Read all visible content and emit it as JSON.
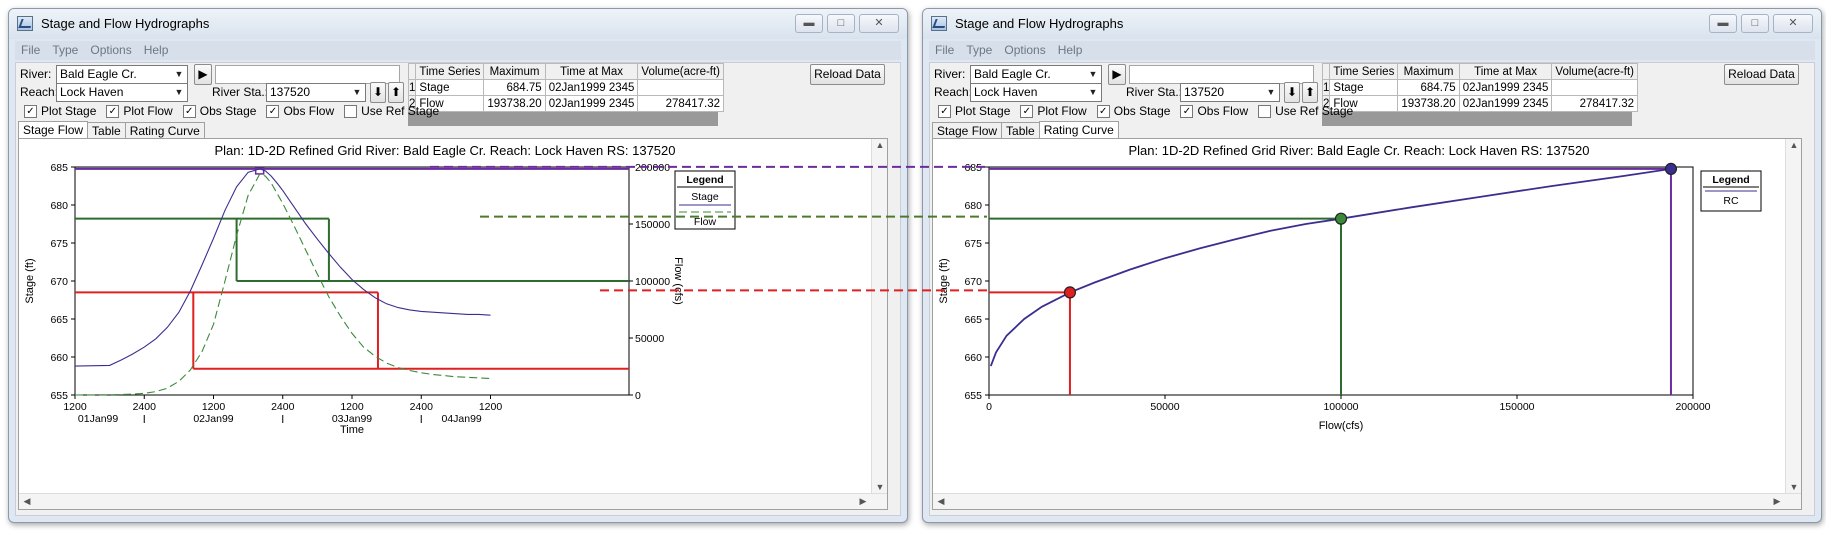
{
  "windows": [
    {
      "id": "left",
      "title": "Stage and Flow Hydrographs",
      "menu": [
        "File",
        "Type",
        "Options",
        "Help"
      ],
      "river_label": "River:",
      "river_value": "Bald Eagle Cr.",
      "reach_label": "Reach:",
      "reach_value": "Lock Haven",
      "station_label": "River Sta.:",
      "station_value": "137520",
      "reload_label": "Reload Data",
      "play_icon": "play-icon",
      "table": {
        "headers": [
          "Time Series",
          "Maximum",
          "Time at Max",
          "Volume(acre-ft)"
        ],
        "rows": [
          {
            "n": "1",
            "series": "Stage",
            "max": "684.75",
            "time": "02Jan1999  2345",
            "vol": ""
          },
          {
            "n": "2",
            "series": "Flow",
            "max": "193738.20",
            "time": "02Jan1999  2345",
            "vol": "278417.32"
          }
        ]
      },
      "checkboxes": [
        {
          "label": "Plot Stage",
          "checked": true
        },
        {
          "label": "Plot Flow",
          "checked": true
        },
        {
          "label": "Obs Stage",
          "checked": true
        },
        {
          "label": "Obs Flow",
          "checked": true
        },
        {
          "label": "Use Ref Stage",
          "checked": false
        }
      ],
      "tabs": [
        {
          "label": "Stage Flow",
          "active": true
        },
        {
          "label": "Table",
          "active": false
        },
        {
          "label": "Rating Curve",
          "active": false
        }
      ]
    },
    {
      "id": "right",
      "title": "Stage and Flow Hydrographs",
      "menu": [
        "File",
        "Type",
        "Options",
        "Help"
      ],
      "river_label": "River:",
      "river_value": "Bald Eagle Cr.",
      "reach_label": "Reach:",
      "reach_value": "Lock Haven",
      "station_label": "River Sta.:",
      "station_value": "137520",
      "reload_label": "Reload Data",
      "play_icon": "play-icon",
      "table": {
        "headers": [
          "Time Series",
          "Maximum",
          "Time at Max",
          "Volume(acre-ft)"
        ],
        "rows": [
          {
            "n": "1",
            "series": "Stage",
            "max": "684.75",
            "time": "02Jan1999  2345",
            "vol": ""
          },
          {
            "n": "2",
            "series": "Flow",
            "max": "193738.20",
            "time": "02Jan1999  2345",
            "vol": "278417.32"
          }
        ]
      },
      "checkboxes": [
        {
          "label": "Plot Stage",
          "checked": true
        },
        {
          "label": "Plot Flow",
          "checked": true
        },
        {
          "label": "Obs Stage",
          "checked": true
        },
        {
          "label": "Obs Flow",
          "checked": true
        },
        {
          "label": "Use Ref Stage",
          "checked": false
        }
      ],
      "tabs": [
        {
          "label": "Stage Flow",
          "active": false
        },
        {
          "label": "Table",
          "active": false
        },
        {
          "label": "Rating Curve",
          "active": true
        }
      ]
    }
  ],
  "chart_data": [
    {
      "type": "line",
      "title": "Plan: 1D-2D Refined Grid    River: Bald Eagle Cr.    Reach: Lock Haven    RS: 137520",
      "xlabel": "Time",
      "ylabel": "Stage (ft)",
      "y2label": "Flow (cfs)",
      "x_unit": "hours from 01Jan99 1200",
      "xlim": [
        0,
        96
      ],
      "ylim": [
        655,
        685
      ],
      "y2lim": [
        0,
        200000
      ],
      "x_ticks": [
        {
          "x": 0,
          "label": "1200"
        },
        {
          "x": 12,
          "label": "2400"
        },
        {
          "x": 24,
          "label": "1200"
        },
        {
          "x": 36,
          "label": "2400"
        },
        {
          "x": 48,
          "label": "1200"
        },
        {
          "x": 60,
          "label": "2400"
        },
        {
          "x": 72,
          "label": "1200"
        }
      ],
      "x_day_labels": [
        {
          "x": 4,
          "label": "01Jan99"
        },
        {
          "x": 24,
          "label": "02Jan99"
        },
        {
          "x": 48,
          "label": "03Jan99"
        },
        {
          "x": 67,
          "label": "04Jan99"
        }
      ],
      "y_ticks": [
        655,
        660,
        665,
        670,
        675,
        680,
        685
      ],
      "y2_ticks": [
        0,
        50000,
        100000,
        150000,
        200000
      ],
      "legend": {
        "title": "Legend",
        "placement": "top-right",
        "entries": [
          "Stage",
          "Flow"
        ]
      },
      "series": [
        {
          "name": "Stage",
          "axis": "left",
          "color": "#3a2f8f",
          "dash": "solid",
          "x": [
            0,
            6,
            8,
            10,
            12,
            14,
            16,
            18,
            20,
            22,
            24,
            26,
            28,
            30,
            32,
            33,
            34,
            35,
            36,
            37,
            38,
            40,
            42,
            44,
            46,
            48,
            50,
            52,
            54,
            56,
            58,
            60,
            62,
            64,
            66,
            68,
            70,
            72
          ],
          "y": [
            658.8,
            658.9,
            659.6,
            660.4,
            661.3,
            662.4,
            663.9,
            665.9,
            668.7,
            672.1,
            675.6,
            679.3,
            682.4,
            684.3,
            684.75,
            684.5,
            683.8,
            682.9,
            681.9,
            680.8,
            679.7,
            677.5,
            675.5,
            673.6,
            671.8,
            670.2,
            668.9,
            667.8,
            667.0,
            666.5,
            666.2,
            666.0,
            665.9,
            665.8,
            665.7,
            665.6,
            665.6,
            665.5
          ]
        },
        {
          "name": "Flow",
          "axis": "right",
          "color": "#3a8a3a",
          "dash": "dashed",
          "x": [
            0,
            6,
            10,
            12,
            14,
            16,
            18,
            20,
            22,
            24,
            26,
            28,
            30,
            32,
            33,
            34,
            36,
            38,
            40,
            42,
            44,
            46,
            48,
            50,
            52,
            54,
            56,
            58,
            60,
            62,
            64,
            66,
            68,
            70,
            72
          ],
          "y": [
            0,
            200,
            800,
            1500,
            3000,
            6000,
            12000,
            22000,
            38000,
            62000,
            100000,
            140000,
            175000,
            193738,
            192000,
            186000,
            168000,
            148000,
            127000,
            106000,
            86000,
            69000,
            54000,
            42000,
            34000,
            28000,
            24000,
            21500,
            19500,
            18000,
            17000,
            16000,
            15500,
            15000,
            14500
          ]
        }
      ],
      "annotations": [
        {
          "name": "peak-flow-level",
          "color": "#6a2c9e",
          "stage": 684.75,
          "flow": 193738
        },
        {
          "name": "mid-flow-level",
          "color": "#2e6b2e",
          "stage": 678.2,
          "flow": 100000,
          "rise_x": 28,
          "fall_x": 44
        },
        {
          "name": "low-flow-level",
          "color": "#e02020",
          "stage": 668.5,
          "flow": 23000,
          "rise_x": 20.5,
          "fall_x": 52.5
        }
      ]
    },
    {
      "type": "line",
      "title": "Plan: 1D-2D Refined Grid    River: Bald Eagle Cr.    Reach: Lock Haven    RS: 137520",
      "xlabel": "Flow(cfs)",
      "ylabel": "Stage (ft)",
      "xlim": [
        0,
        200000
      ],
      "ylim": [
        655,
        685
      ],
      "x_ticks": [
        0,
        50000,
        100000,
        150000,
        200000
      ],
      "y_ticks": [
        655,
        660,
        665,
        670,
        675,
        680,
        685
      ],
      "legend": {
        "title": "Legend",
        "placement": "top-right",
        "entries": [
          "RC"
        ]
      },
      "series": [
        {
          "name": "RC",
          "color": "#3a2f8f",
          "x": [
            500,
            2000,
            5000,
            10000,
            15000,
            23000,
            30000,
            40000,
            50000,
            60000,
            70000,
            80000,
            90000,
            100000,
            120000,
            140000,
            160000,
            180000,
            193738
          ],
          "y": [
            658.8,
            660.6,
            662.8,
            665.0,
            666.6,
            668.5,
            669.8,
            671.5,
            673.0,
            674.3,
            675.5,
            676.6,
            677.5,
            678.2,
            679.7,
            681.1,
            682.5,
            683.8,
            684.75
          ]
        }
      ],
      "points": [
        {
          "name": "low-point",
          "x": 23000,
          "y": 668.5,
          "color": "#e02020"
        },
        {
          "name": "mid-point",
          "x": 100000,
          "y": 678.2,
          "color": "#3a8a3a"
        },
        {
          "name": "peak-point",
          "x": 193738,
          "y": 684.75,
          "color": "#3a2f8f"
        }
      ],
      "guides": [
        {
          "name": "low-guide",
          "color": "#e02020",
          "x": 23000,
          "y": 668.5
        },
        {
          "name": "mid-guide",
          "color": "#2e6b2e",
          "x": 100000,
          "y": 678.2
        },
        {
          "name": "peak-guide",
          "color": "#6a2c9e",
          "x": 193738,
          "y": 684.75
        }
      ]
    }
  ],
  "connectors": [
    {
      "name": "peak-connector",
      "color": "#6a2c9e",
      "stage": 684.75
    },
    {
      "name": "mid-connector",
      "color": "#4c7a2c",
      "stage": 678.2
    },
    {
      "name": "low-connector",
      "color": "#e02020",
      "stage": 668.5
    }
  ]
}
